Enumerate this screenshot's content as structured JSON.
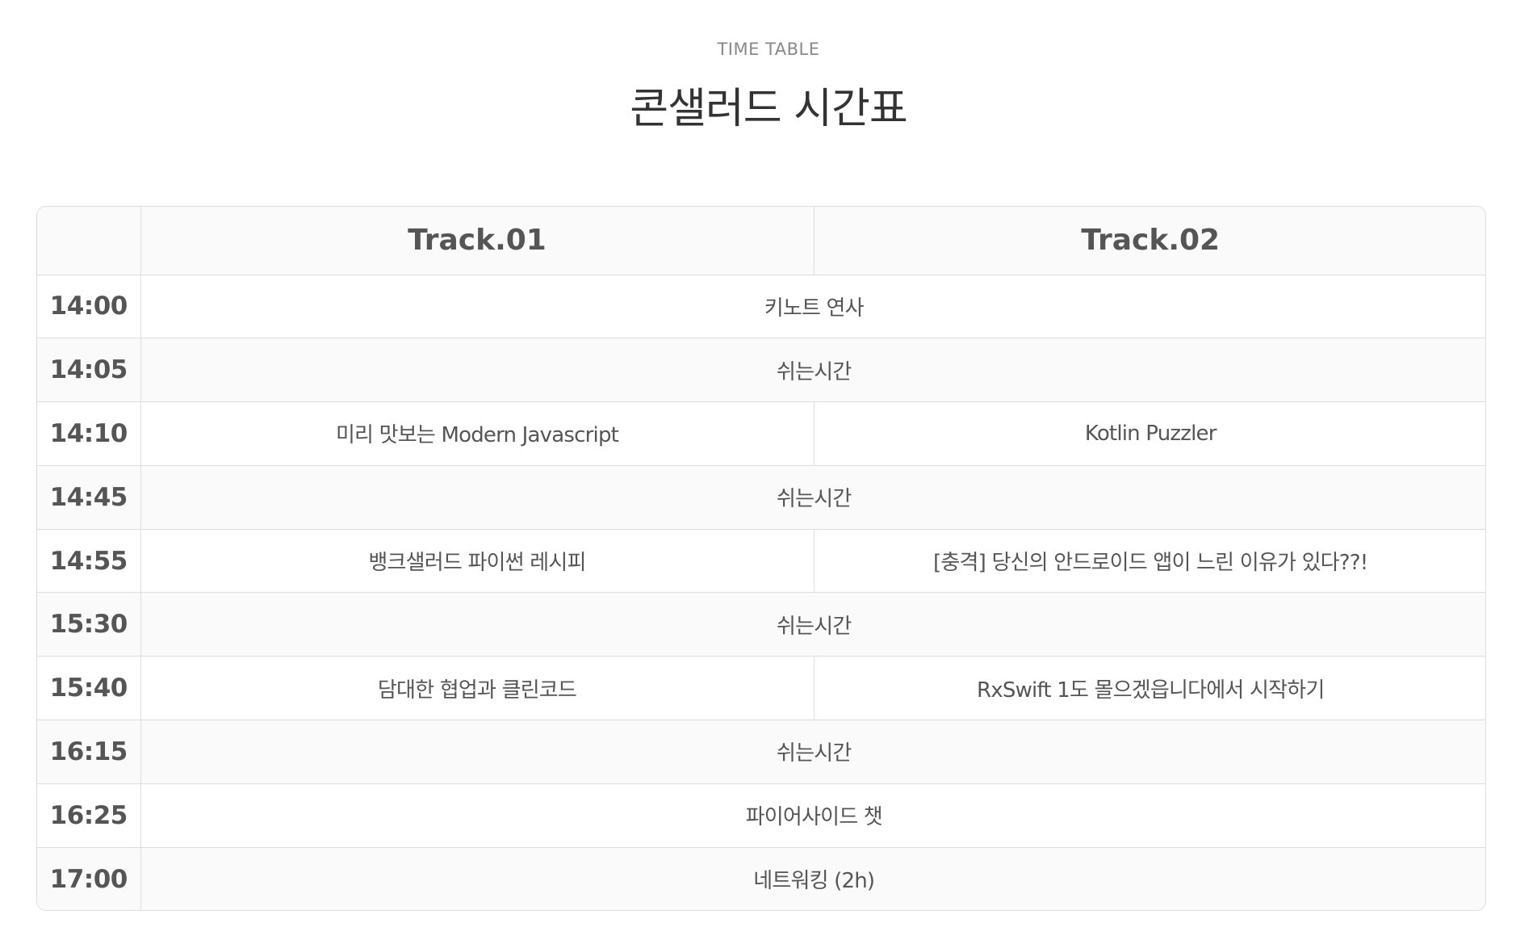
{
  "header": {
    "eyebrow": "TIME TABLE",
    "title": "콘샐러드 시간표"
  },
  "table": {
    "columns": [
      "",
      "Track.01",
      "Track.02"
    ],
    "rows": [
      {
        "time": "14:00",
        "type": "full",
        "session": "키노트 연사"
      },
      {
        "time": "14:05",
        "type": "break",
        "session": "쉬는시간"
      },
      {
        "time": "14:10",
        "type": "split",
        "track1": "미리 맛보는 Modern Javascript",
        "track2": "Kotlin Puzzler"
      },
      {
        "time": "14:45",
        "type": "break",
        "session": "쉬는시간"
      },
      {
        "time": "14:55",
        "type": "split",
        "track1": "뱅크샐러드 파이썬 레시피",
        "track2": "[충격] 당신의 안드로이드 앱이 느린 이유가 있다??!"
      },
      {
        "time": "15:30",
        "type": "break",
        "session": "쉬는시간"
      },
      {
        "time": "15:40",
        "type": "split",
        "track1": "담대한 협업과 클린코드",
        "track2": "RxSwift 1도 몰으겠읍니다에서 시작하기"
      },
      {
        "time": "16:15",
        "type": "break",
        "session": "쉬는시간"
      },
      {
        "time": "16:25",
        "type": "full",
        "session": "파이어사이드 챗"
      },
      {
        "time": "17:00",
        "type": "break",
        "session": "네트워킹 (2h)"
      }
    ]
  }
}
